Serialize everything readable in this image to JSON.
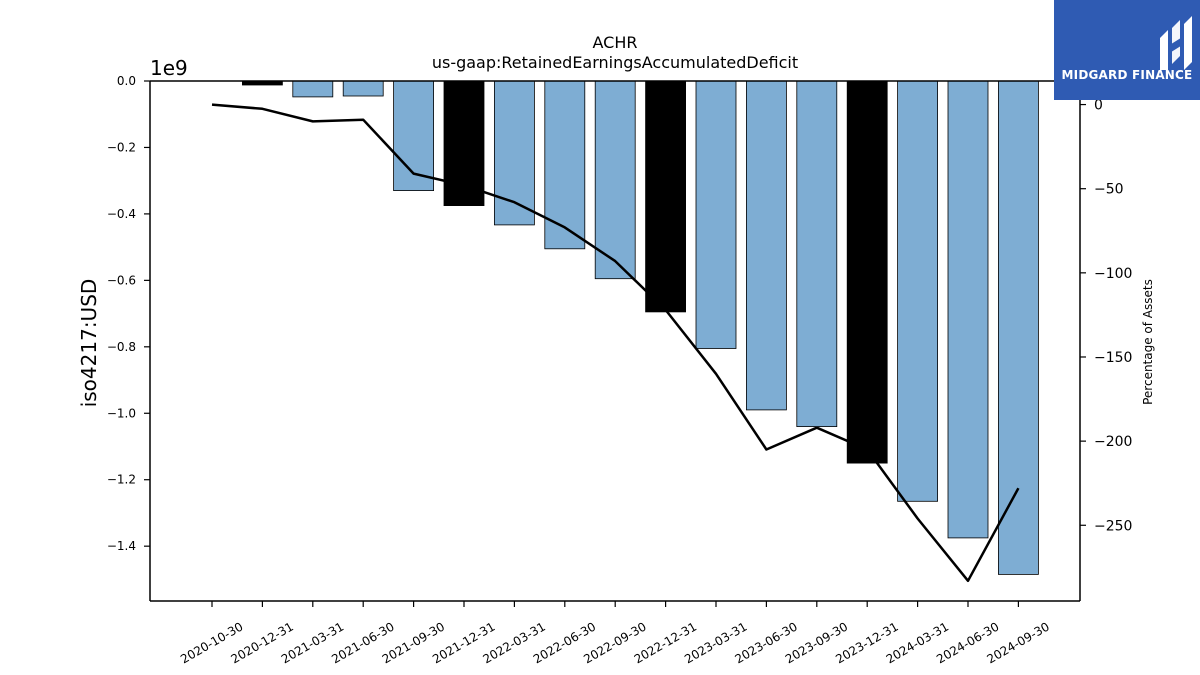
{
  "brand": {
    "name": "MIDGARD FINANCE",
    "color": "#2f5bb3"
  },
  "chart_data": {
    "type": "bar",
    "title": "ACHR",
    "subtitle": "us-gaap:RetainedEarningsAccumulatedDeficit",
    "ylabel": "iso4217:USD",
    "ylabel_right": "Percentage of Assets",
    "y_offset_label": "1e9",
    "ylim": [
      -1.565,
      0.0
    ],
    "y2lim": [
      -295,
      14
    ],
    "yticks": [
      0.0,
      -0.2,
      -0.4,
      -0.6,
      -0.8,
      -1.0,
      -1.2,
      -1.4
    ],
    "y2ticks": [
      0,
      -50,
      -100,
      -150,
      -200,
      -250
    ],
    "categories": [
      "2020-10-30",
      "2020-12-31",
      "2021-03-31",
      "2021-06-30",
      "2021-09-30",
      "2021-12-31",
      "2022-03-31",
      "2022-06-30",
      "2022-09-30",
      "2022-12-31",
      "2023-03-31",
      "2023-06-30",
      "2023-09-30",
      "2023-12-31",
      "2024-03-31",
      "2024-06-30",
      "2024-09-30"
    ],
    "bars": [
      {
        "value": 0.0,
        "fiscal_year_end": false
      },
      {
        "value": -0.012,
        "fiscal_year_end": true
      },
      {
        "value": -0.048,
        "fiscal_year_end": false
      },
      {
        "value": -0.045,
        "fiscal_year_end": false
      },
      {
        "value": -0.33,
        "fiscal_year_end": false
      },
      {
        "value": -0.375,
        "fiscal_year_end": true
      },
      {
        "value": -0.433,
        "fiscal_year_end": false
      },
      {
        "value": -0.505,
        "fiscal_year_end": false
      },
      {
        "value": -0.595,
        "fiscal_year_end": false
      },
      {
        "value": -0.695,
        "fiscal_year_end": true
      },
      {
        "value": -0.805,
        "fiscal_year_end": false
      },
      {
        "value": -0.99,
        "fiscal_year_end": false
      },
      {
        "value": -1.04,
        "fiscal_year_end": false
      },
      {
        "value": -1.15,
        "fiscal_year_end": true
      },
      {
        "value": -1.265,
        "fiscal_year_end": false
      },
      {
        "value": -1.375,
        "fiscal_year_end": false
      },
      {
        "value": -1.485,
        "fiscal_year_end": false
      }
    ],
    "line_values": [
      0,
      -2.5,
      -10,
      -9,
      -41,
      -48,
      -58,
      -73,
      -93,
      -122,
      -160,
      -205,
      -192,
      -205,
      -246,
      -283,
      -228
    ],
    "colors": {
      "bar": "#7eadd3",
      "bar_fiscal_year_end": "#000000",
      "line": "#000000"
    },
    "grid": false
  }
}
